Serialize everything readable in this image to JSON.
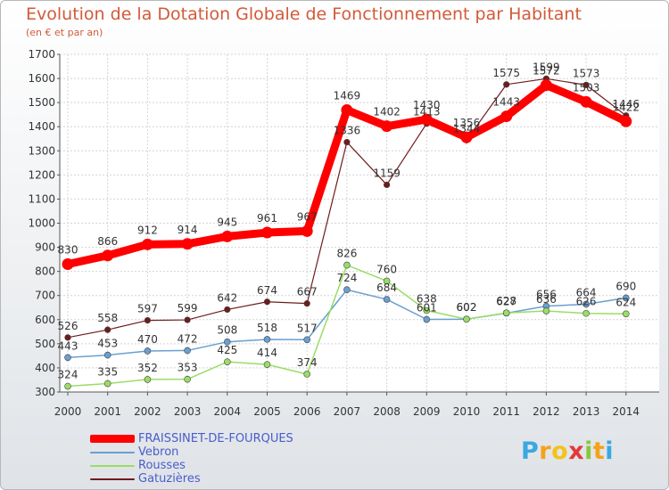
{
  "title": "Evolution de la Dotation Globale de Fonctionnement par Habitant",
  "subtitle": "(en € et par an)",
  "logo_text": "Proxiti",
  "chart_data": {
    "type": "line",
    "title": "Evolution de la Dotation Globale de Fonctionnement par Habitant",
    "ylabel": "(en € et par an)",
    "xlabel": "",
    "x": [
      "2000",
      "2001",
      "2002",
      "2003",
      "2004",
      "2005",
      "2006",
      "2007",
      "2008",
      "2009",
      "2010",
      "2011",
      "2012",
      "2013",
      "2014"
    ],
    "ylim": [
      300,
      1700
    ],
    "yticks": [
      300,
      400,
      500,
      600,
      700,
      800,
      900,
      1000,
      1100,
      1200,
      1300,
      1400,
      1500,
      1600,
      1700
    ],
    "grid": true,
    "legend_position": "bottom-left",
    "series": [
      {
        "name": "FRAISSINET-DE-FOURQUES",
        "color": "#ff0000",
        "values": [
          830,
          866,
          912,
          914,
          945,
          961,
          967,
          1469,
          1402,
          1430,
          1356,
          1443,
          1572,
          1503,
          1422
        ]
      },
      {
        "name": "Vebron",
        "color": "#6a9fd0",
        "values": [
          443,
          453,
          470,
          472,
          508,
          518,
          517,
          724,
          684,
          601,
          602,
          627,
          656,
          664,
          690
        ]
      },
      {
        "name": "Rousses",
        "color": "#99dd66",
        "values": [
          324,
          335,
          352,
          353,
          425,
          414,
          374,
          826,
          760,
          638,
          602,
          628,
          636,
          626,
          624
        ]
      },
      {
        "name": "Gatuzières",
        "color": "#6e1c1c",
        "values": [
          526,
          558,
          597,
          599,
          642,
          674,
          667,
          1336,
          1159,
          1413,
          1344,
          1575,
          1599,
          1573,
          1446
        ]
      }
    ]
  }
}
